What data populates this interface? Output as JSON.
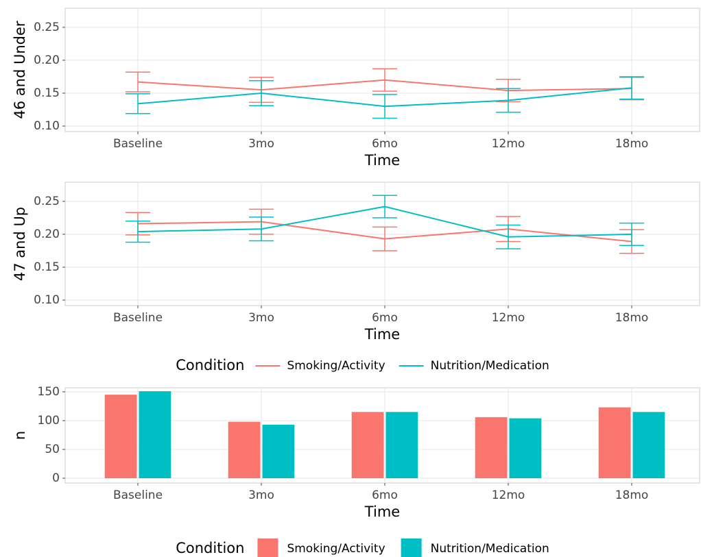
{
  "chart_data": [
    {
      "type": "line",
      "y_label": "46 and Under",
      "x_label": "Time",
      "categories": [
        "Baseline",
        "3mo",
        "6mo",
        "12mo",
        "18mo"
      ],
      "ylim": [
        0.0917,
        0.279
      ],
      "yticks": [
        {
          "value": 0.1,
          "label": "0.10"
        },
        0.15,
        {
          "value": 0.2,
          "label": "0.20"
        },
        0.25
      ],
      "grid": true,
      "series": [
        {
          "name": "Smoking/Activity",
          "color": "#F8766D",
          "values": [
            0.167,
            0.155,
            0.17,
            0.154,
            0.157
          ],
          "errors": [
            0.015,
            0.019,
            0.017,
            0.017,
            0.017
          ]
        },
        {
          "name": "Nutrition/Medication",
          "color": "#00BFC4",
          "values": [
            0.134,
            0.15,
            0.13,
            0.139,
            0.158
          ],
          "errors": [
            0.015,
            0.019,
            0.018,
            0.018,
            0.017
          ]
        }
      ]
    },
    {
      "type": "line",
      "y_label": "47 and Up",
      "x_label": "Time",
      "categories": [
        "Baseline",
        "3mo",
        "6mo",
        "12mo",
        "18mo"
      ],
      "ylim": [
        0.0917,
        0.279
      ],
      "yticks": [
        {
          "value": 0.1,
          "label": "0.10"
        },
        0.15,
        {
          "value": 0.2,
          "label": "0.20"
        },
        0.25
      ],
      "grid": true,
      "legend_title": "Condition",
      "series": [
        {
          "name": "Smoking/Activity",
          "color": "#F8766D",
          "values": [
            0.216,
            0.219,
            0.193,
            0.208,
            0.189
          ],
          "errors": [
            0.017,
            0.019,
            0.018,
            0.019,
            0.018
          ]
        },
        {
          "name": "Nutrition/Medication",
          "color": "#00BFC4",
          "values": [
            0.204,
            0.208,
            0.242,
            0.196,
            0.2
          ],
          "errors": [
            0.016,
            0.018,
            0.017,
            0.018,
            0.017
          ]
        }
      ]
    },
    {
      "type": "bar",
      "y_label": "n",
      "x_label": "Time",
      "categories": [
        "Baseline",
        "3mo",
        "6mo",
        "12mo",
        "18mo"
      ],
      "ylim": [
        -8.3,
        157
      ],
      "yticks": [
        0,
        50,
        100,
        150
      ],
      "grid": true,
      "legend_title": "Condition",
      "series": [
        {
          "name": "Smoking/Activity",
          "color": "#F8766D",
          "values": [
            145,
            98,
            115,
            106,
            123
          ]
        },
        {
          "name": "Nutrition/Medication",
          "color": "#00BFC4",
          "values": [
            151,
            93,
            115,
            104,
            115
          ]
        }
      ]
    }
  ]
}
